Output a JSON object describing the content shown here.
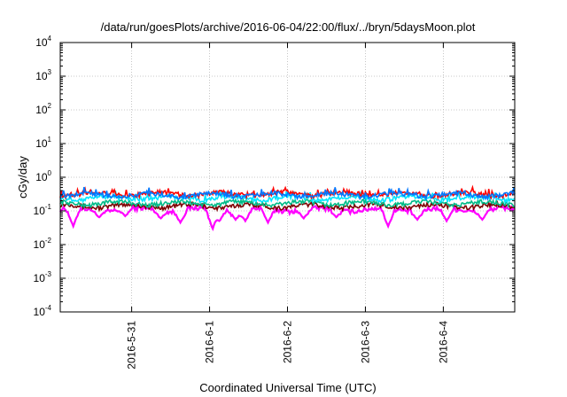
{
  "chart_data": {
    "type": "line",
    "title": "/data/run/goesPlots/archive/2016-06-04/22:00/flux/../bryn/5daysMoon.plot",
    "xlabel": "Coordinated Universal Time (UTC)",
    "ylabel": "cGy/day",
    "y_scale": "log",
    "ylim": [
      0.0001,
      10000
    ],
    "y_ticks": [
      {
        "value": 0.0001,
        "base": "10",
        "exp": "-4"
      },
      {
        "value": 0.001,
        "base": "10",
        "exp": "-3"
      },
      {
        "value": 0.01,
        "base": "10",
        "exp": "-2"
      },
      {
        "value": 0.1,
        "base": "10",
        "exp": "-1"
      },
      {
        "value": 1,
        "base": "10",
        "exp": "0"
      },
      {
        "value": 10,
        "base": "10",
        "exp": "1"
      },
      {
        "value": 100,
        "base": "10",
        "exp": "2"
      },
      {
        "value": 1000,
        "base": "10",
        "exp": "3"
      },
      {
        "value": 10000,
        "base": "10",
        "exp": "4"
      }
    ],
    "xlim": [
      "2016-05-30T02:00",
      "2016-06-04T22:00"
    ],
    "x_ticks": [
      {
        "value": "2016-05-31T00:00",
        "label": "2016-5-31"
      },
      {
        "value": "2016-06-01T00:00",
        "label": "2016-6-1"
      },
      {
        "value": "2016-06-02T00:00",
        "label": "2016-6-2"
      },
      {
        "value": "2016-06-03T00:00",
        "label": "2016-6-3"
      },
      {
        "value": "2016-06-04T00:00",
        "label": "2016-6-4"
      }
    ],
    "grid": true,
    "series": [
      {
        "color": "#ff00ff",
        "base": 0.11,
        "dips": [
          [
            "2016-05-30T06:00",
            0.035
          ],
          [
            "2016-05-30T14:00",
            0.065
          ],
          [
            "2016-05-30T22:00",
            0.07
          ],
          [
            "2016-05-31T09:00",
            0.06
          ],
          [
            "2016-05-31T15:00",
            0.045
          ],
          [
            "2016-06-01T01:00",
            0.028
          ],
          [
            "2016-06-01T03:00",
            0.05
          ],
          [
            "2016-06-01T08:00",
            0.055
          ],
          [
            "2016-06-01T11:00",
            0.05
          ],
          [
            "2016-06-01T18:00",
            0.045
          ],
          [
            "2016-06-02T05:00",
            0.06
          ],
          [
            "2016-06-02T15:00",
            0.065
          ],
          [
            "2016-06-03T07:00",
            0.035
          ],
          [
            "2016-06-03T16:00",
            0.055
          ],
          [
            "2016-06-04T01:00",
            0.05
          ],
          [
            "2016-06-04T12:00",
            0.055
          ]
        ]
      },
      {
        "color": "#7f0000",
        "base": 0.14
      },
      {
        "color": "#00bb88",
        "base": 0.17
      },
      {
        "color": "#00e5ff",
        "base": 0.24
      },
      {
        "color": "#ff0000",
        "base": 0.32
      },
      {
        "color": "#0077ff",
        "base": 0.3
      }
    ]
  }
}
